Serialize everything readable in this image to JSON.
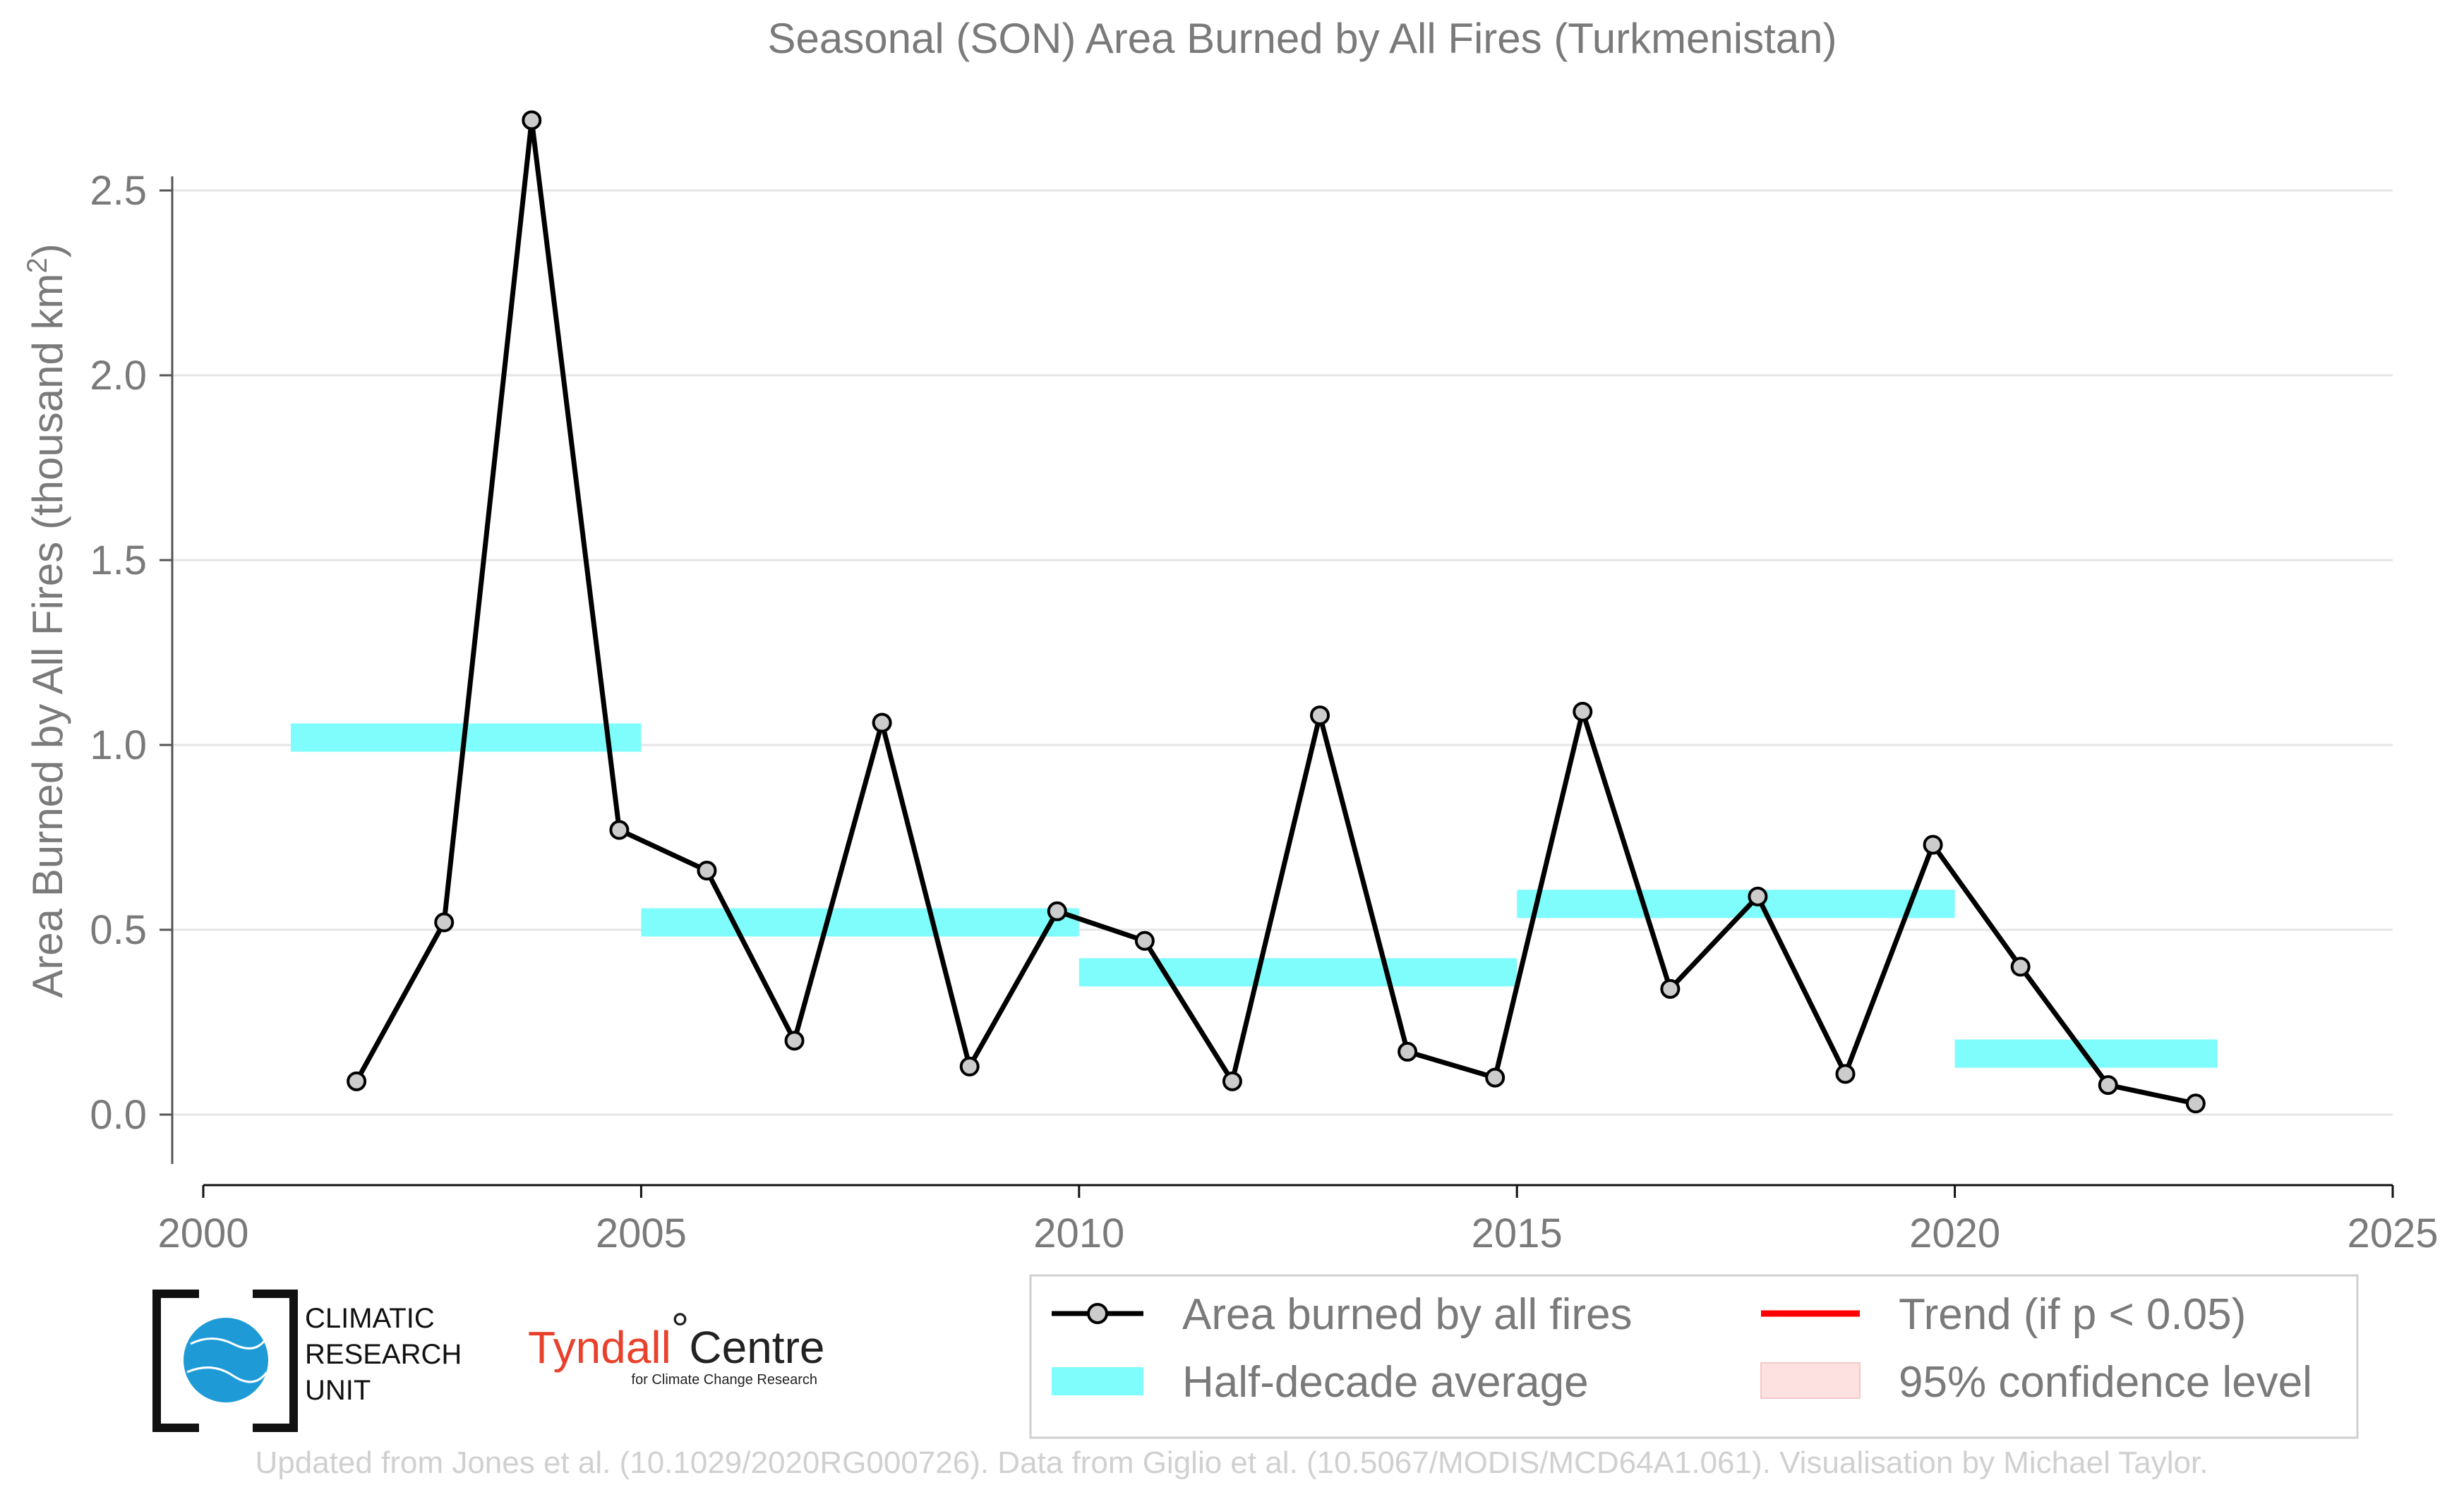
{
  "chart_data": {
    "type": "line",
    "title": "Seasonal (SON) Area Burned by All Fires (Turkmenistan)",
    "ylabel_main": "Area Burned by All Fires (thousand km",
    "ylabel_sup": "2",
    "ylabel_close": ")",
    "xlim": [
      2000,
      2025
    ],
    "ylim": [
      -0.12,
      2.75
    ],
    "xticks": [
      2000,
      2005,
      2010,
      2015,
      2020,
      2025
    ],
    "yticks": [
      0.0,
      0.5,
      1.0,
      1.5,
      2.0,
      2.5
    ],
    "ytick_labels": [
      "0.0",
      "0.5",
      "1.0",
      "1.5",
      "2.0",
      "2.5"
    ],
    "grid": "horizontal",
    "legend_position": "bottom-right",
    "series": [
      {
        "name": "Area burned by all fires",
        "color": "#000000",
        "marker_fill": "#cccccc",
        "x": [
          2001.75,
          2002.75,
          2003.75,
          2004.75,
          2005.75,
          2006.75,
          2007.75,
          2008.75,
          2009.75,
          2010.75,
          2011.75,
          2012.75,
          2013.75,
          2014.75,
          2015.75,
          2016.75,
          2017.75,
          2018.75,
          2019.75,
          2020.75,
          2021.75,
          2022.75
        ],
        "y": [
          0.09,
          0.52,
          2.69,
          0.77,
          0.66,
          0.2,
          1.06,
          0.13,
          0.55,
          0.47,
          0.09,
          1.08,
          0.17,
          0.1,
          1.09,
          0.34,
          0.59,
          0.11,
          0.73,
          0.4,
          0.08,
          0.03
        ]
      },
      {
        "name": "Half-decade average",
        "color": "#7ffcfc",
        "segments": [
          {
            "x0": 2001,
            "x1": 2005,
            "y": 1.02
          },
          {
            "x0": 2005,
            "x1": 2010,
            "y": 0.52
          },
          {
            "x0": 2010,
            "x1": 2015,
            "y": 0.385
          },
          {
            "x0": 2015,
            "x1": 2020,
            "y": 0.57
          },
          {
            "x0": 2020,
            "x1": 2023,
            "y": 0.165
          }
        ]
      },
      {
        "name": "Trend (if p < 0.05)",
        "color": "#ff0000"
      },
      {
        "name": "95% confidence level",
        "color": "#fde0e0"
      }
    ]
  },
  "logos": {
    "cru_lines": [
      "CLIMATIC",
      "RESEARCH",
      "UNIT"
    ],
    "tyndall_name": "Tyndall",
    "tyndall_degree": "°",
    "tyndall_centre": "Centre",
    "tyndall_sub": "for Climate Change Research"
  },
  "credit": "Updated from Jones et al. (10.1029/2020RG000726). Data from Giglio et al. (10.5067/MODIS/MCD64A1.061). Visualisation by Michael Taylor."
}
